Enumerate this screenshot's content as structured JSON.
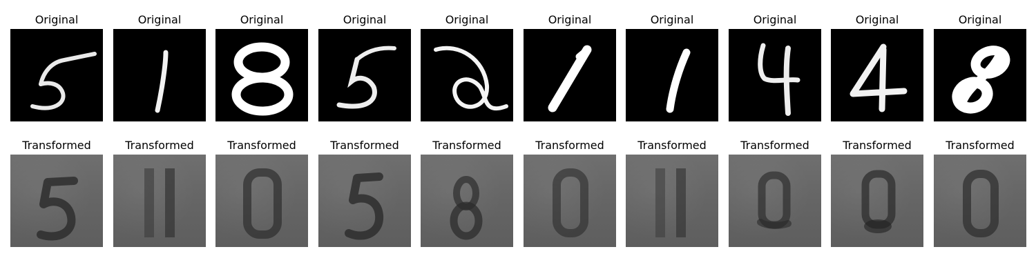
{
  "rows": [
    {
      "row": "original",
      "label": "Original",
      "digits": [
        "5",
        "1",
        "8",
        "5",
        "2",
        "1",
        "1",
        "4",
        "4",
        "8"
      ]
    },
    {
      "row": "transformed",
      "label": "Transformed",
      "digits": [
        "5",
        "1",
        "0",
        "5",
        "8",
        "0",
        "1",
        "0",
        "0",
        "0"
      ]
    }
  ],
  "colors": {
    "original_bg": "#000000",
    "original_stroke": "#f2f2f2",
    "transformed_bg": "#666666",
    "transformed_stroke": "#2c2c2c"
  }
}
